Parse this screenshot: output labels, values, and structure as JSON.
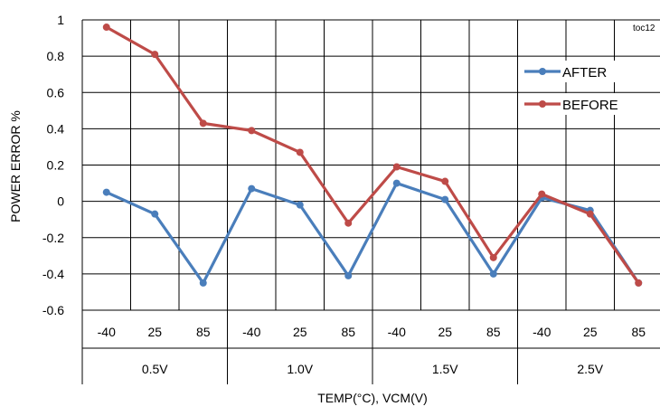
{
  "chart_data": {
    "type": "line",
    "tag": "toc12",
    "xlabel": "TEMP(°C),  VCM(V)",
    "ylabel": "POWER ERROR %",
    "ylim": [
      -0.6,
      1.0
    ],
    "yticks": [
      1,
      0.8,
      0.6,
      0.4,
      0.2,
      0,
      -0.2,
      -0.4,
      -0.6
    ],
    "ytick_labels": [
      "1",
      "0.8",
      "0.6",
      "0.4",
      "0.2",
      "0",
      "-0.2",
      "-0.4",
      "-0.6"
    ],
    "grid": true,
    "legend_position": "top-right",
    "groups": [
      "0.5V",
      "1.0V",
      "1.5V",
      "2.5V"
    ],
    "categories": [
      "-40",
      "25",
      "85",
      "-40",
      "25",
      "85",
      "-40",
      "25",
      "85",
      "-40",
      "25",
      "85"
    ],
    "series": [
      {
        "name": "AFTER",
        "color": "#4a7ebb",
        "values": [
          0.05,
          -0.07,
          -0.45,
          0.07,
          -0.02,
          -0.41,
          0.1,
          0.01,
          -0.4,
          0.02,
          -0.05,
          -0.45
        ]
      },
      {
        "name": "BEFORE",
        "color": "#be4b48",
        "values": [
          0.96,
          0.81,
          0.43,
          0.39,
          0.27,
          -0.12,
          0.19,
          0.11,
          -0.31,
          0.04,
          -0.07,
          -0.45
        ]
      }
    ]
  }
}
